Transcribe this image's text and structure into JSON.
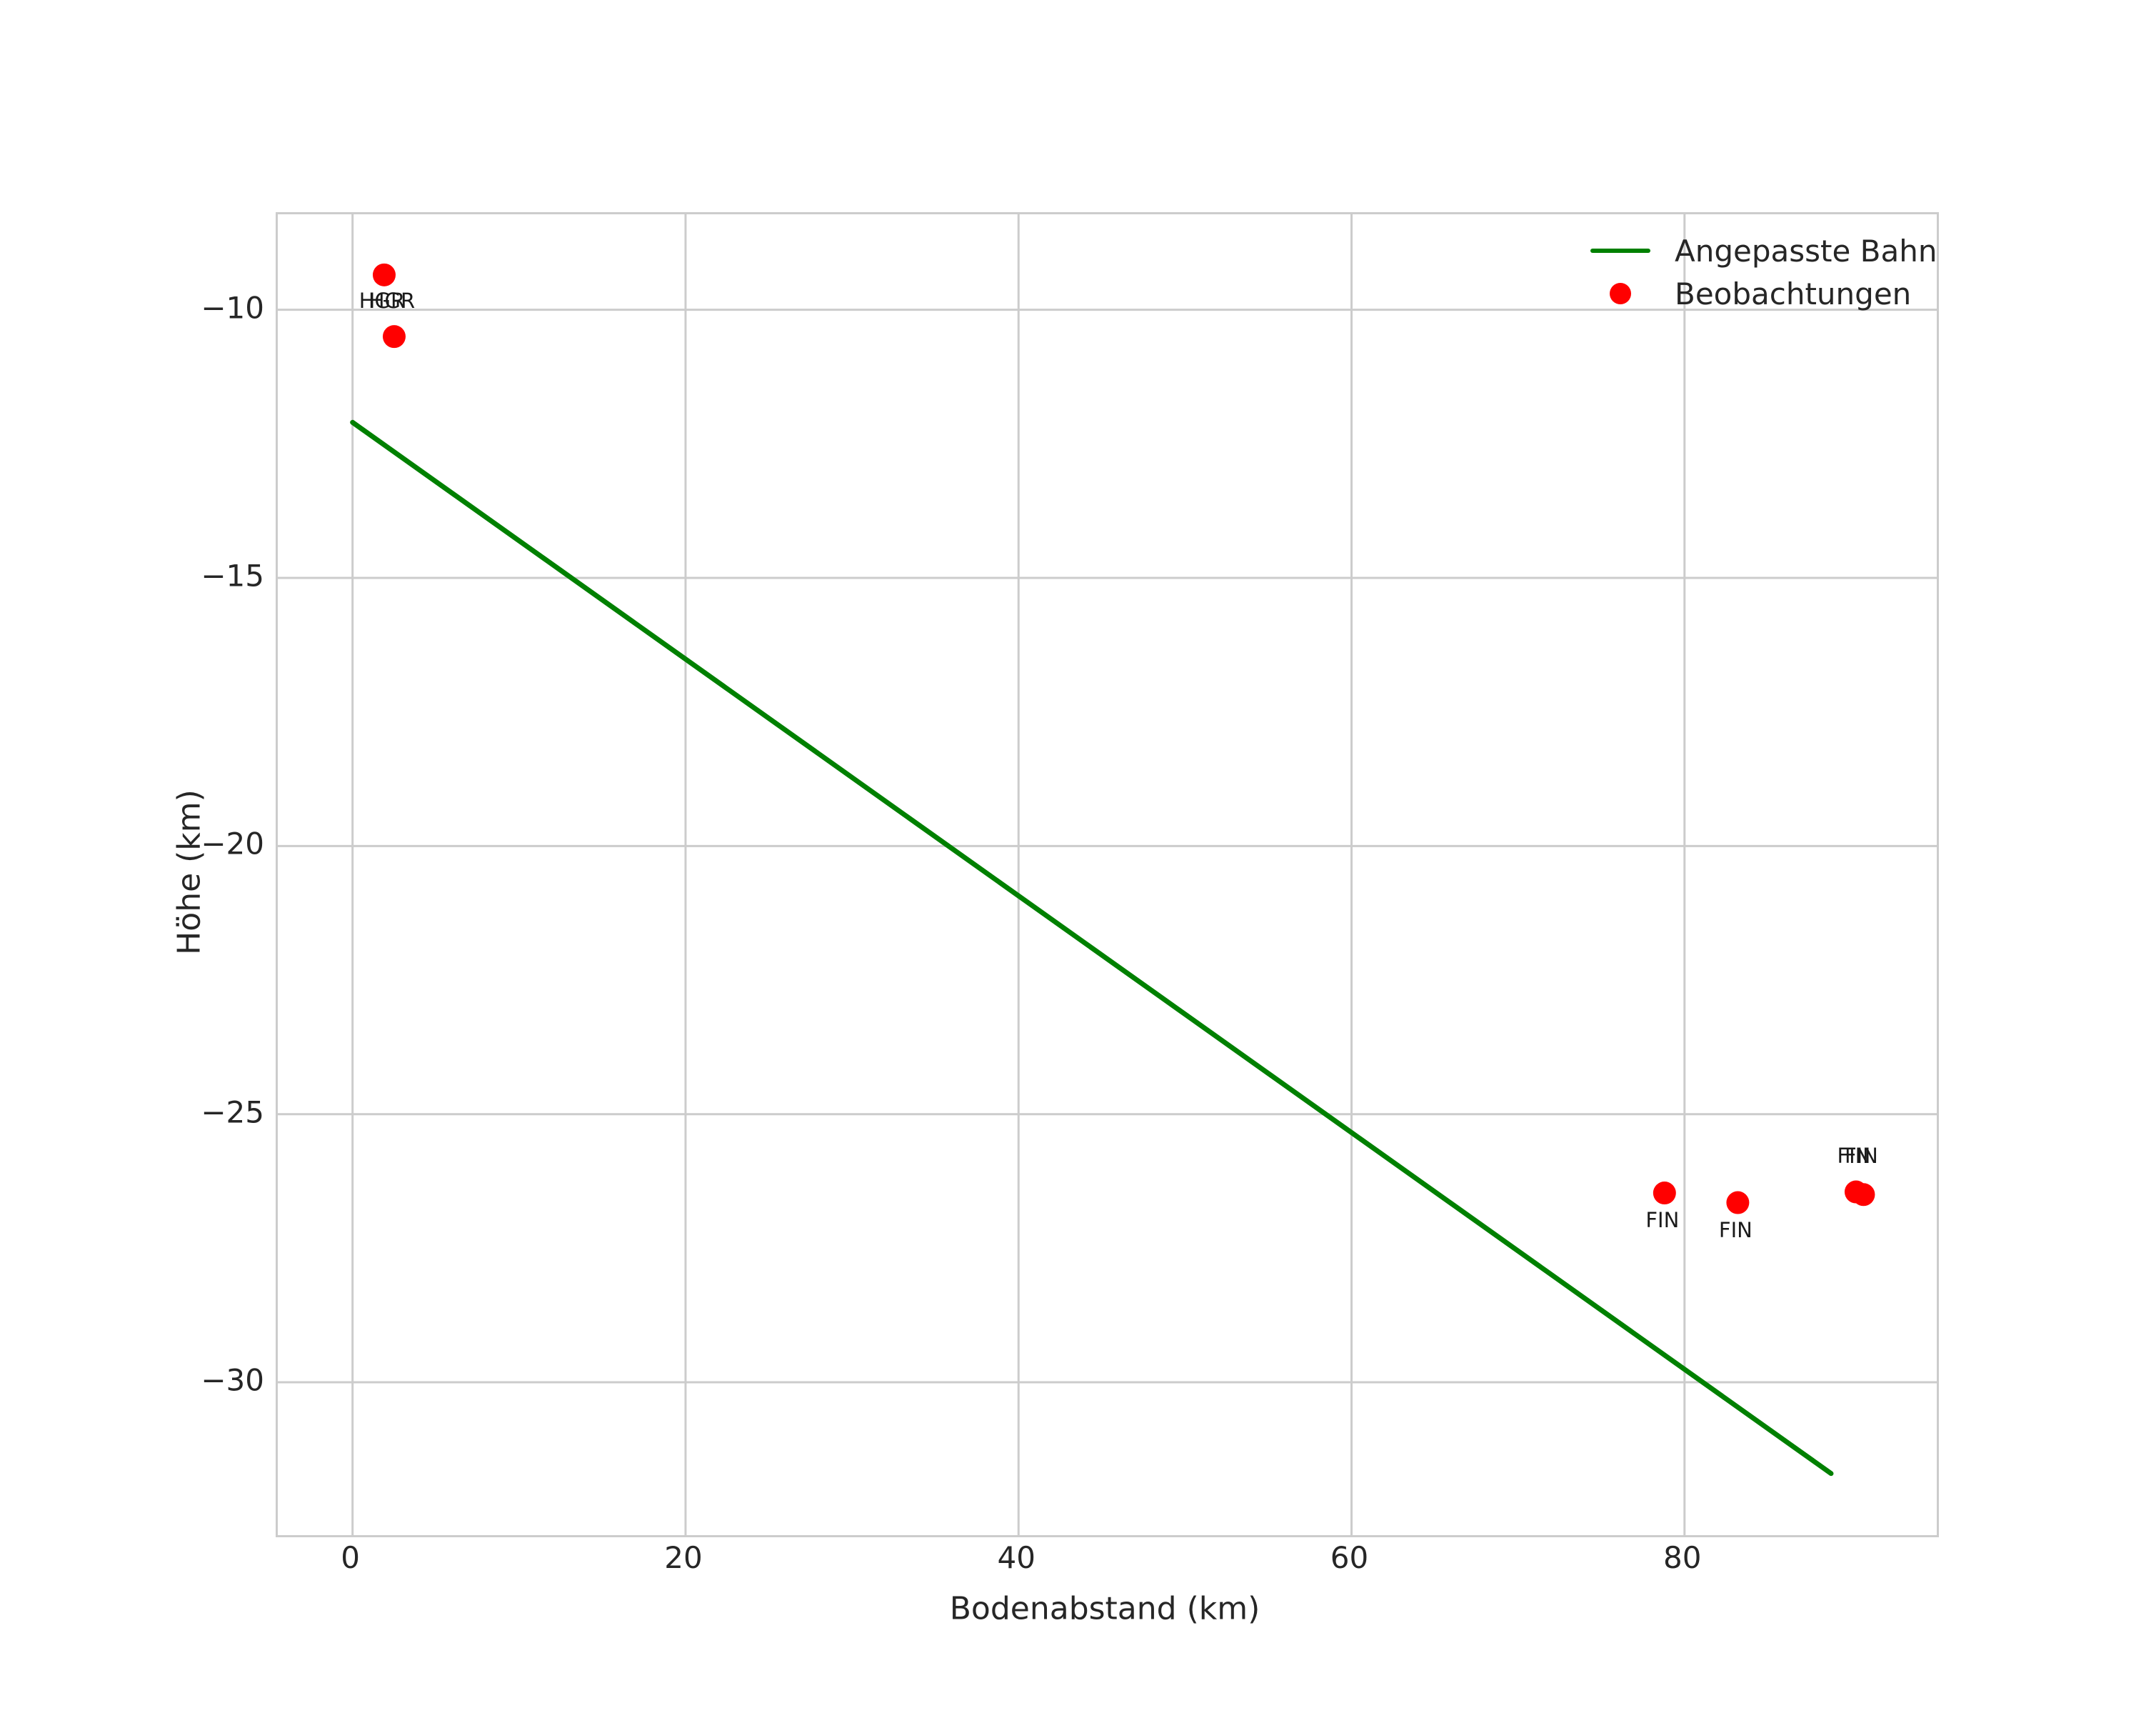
{
  "chart_data": {
    "type": "scatter",
    "title": "",
    "xlabel": "Bodenabstand (km)",
    "ylabel": "Höhe (km)",
    "xlim": [
      -4.49,
      95.15
    ],
    "ylim": [
      -32.85,
      -8.22
    ],
    "grid": true,
    "x_ticks": {
      "values": [
        0,
        20,
        40,
        60,
        80
      ],
      "labels": [
        "0",
        "20",
        "40",
        "60",
        "80"
      ]
    },
    "y_ticks": {
      "values": [
        -10,
        -15,
        -20,
        -25,
        -30
      ],
      "labels": [
        "−10",
        "−15",
        "−20",
        "−25",
        "−30"
      ]
    },
    "legend": {
      "position": "upper right",
      "entries": [
        {
          "label": "Angepasste Bahn",
          "type": "line",
          "color": "#008000"
        },
        {
          "label": "Beobachtungen",
          "type": "point",
          "color": "#ff0000"
        }
      ]
    },
    "series": [
      {
        "name": "Angepasste Bahn",
        "type": "line",
        "color": "#008000",
        "points": [
          [
            0,
            -12.1
          ],
          [
            88.8,
            -31.7
          ]
        ]
      },
      {
        "name": "Beobachtungen",
        "type": "scatter",
        "color": "#ff0000",
        "points": [
          [
            1.9,
            -9.35
          ],
          [
            2.5,
            -10.5
          ],
          [
            78.8,
            -26.47
          ],
          [
            83.2,
            -26.65
          ],
          [
            90.3,
            -26.45
          ],
          [
            90.75,
            -26.5
          ]
        ]
      }
    ],
    "annotations": [
      {
        "text": "HGR",
        "x": 1.9,
        "y": -9.87
      },
      {
        "text": "HGR",
        "x": 2.5,
        "y": -9.87
      },
      {
        "text": "FIN",
        "x": 78.8,
        "y": -27.02
      },
      {
        "text": "FIN",
        "x": 83.2,
        "y": -27.2
      },
      {
        "text": "FIN",
        "x": 90.3,
        "y": -25.82
      },
      {
        "text": "FIN",
        "x": 90.75,
        "y": -25.82
      }
    ],
    "colors": {
      "line": "#008000",
      "points": "#ff0000",
      "grid": "#cccccc",
      "text": "#262626"
    }
  }
}
